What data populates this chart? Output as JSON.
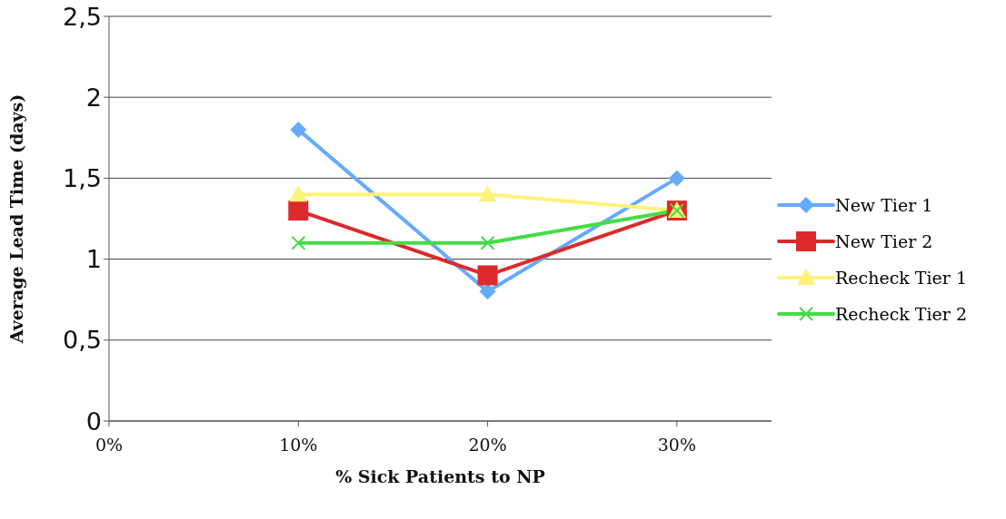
{
  "chart_data": {
    "type": "line",
    "xlabel": "% Sick Patients to NP",
    "ylabel": "Average Lead Time (days)",
    "x": [
      10,
      20,
      30
    ],
    "series": [
      {
        "name": "New Tier 1",
        "color": "#66aaff",
        "marker": "diamond",
        "values": [
          1.8,
          0.8,
          1.5
        ]
      },
      {
        "name": "New Tier 2",
        "color": "#dd2a2a",
        "marker": "square",
        "values": [
          1.3,
          0.9,
          1.3
        ]
      },
      {
        "name": "Recheck Tier 1",
        "color": "#fff27a",
        "marker": "triangle",
        "values": [
          1.4,
          1.4,
          1.3
        ]
      },
      {
        "name": "Recheck Tier 2",
        "color": "#44dd44",
        "marker": "cross",
        "values": [
          1.1,
          1.1,
          1.3
        ]
      }
    ],
    "xlim": [
      0,
      35
    ],
    "xticks": [
      {
        "value": 0,
        "label": "0%"
      },
      {
        "value": 10,
        "label": "10%"
      },
      {
        "value": 20,
        "label": "20%"
      },
      {
        "value": 30,
        "label": "30%"
      }
    ],
    "ylim": [
      0,
      2.5
    ],
    "yticks": [
      0,
      {
        "value": 0.5,
        "label": "0,5"
      },
      1,
      {
        "value": 1.5,
        "label": "1,5"
      },
      2,
      {
        "value": 2.5,
        "label": "2,5"
      }
    ],
    "grid": "y",
    "legend": "right"
  }
}
